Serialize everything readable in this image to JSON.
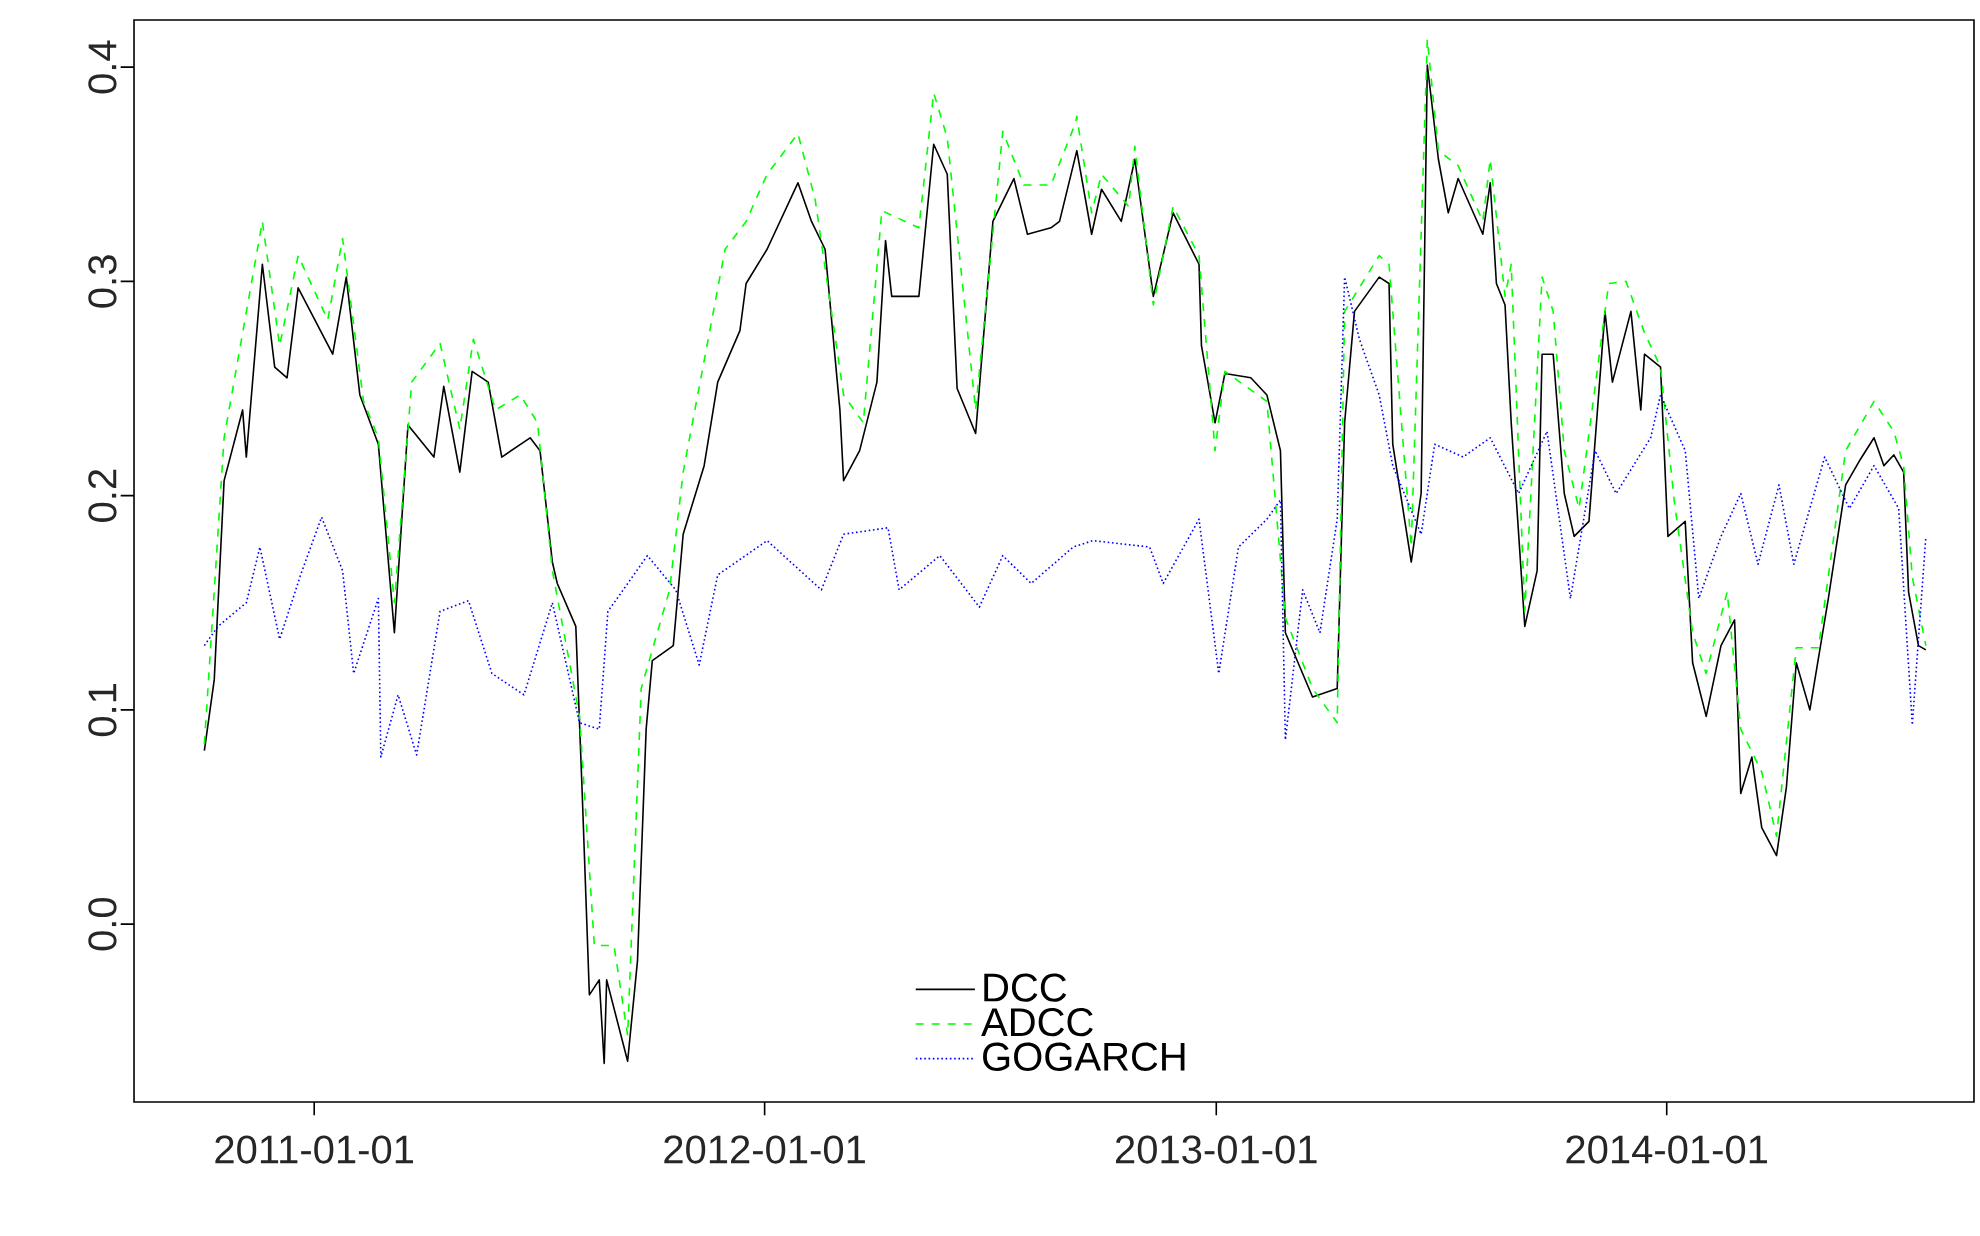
{
  "chart_data": {
    "type": "line",
    "xlim": [
      "2010-08-08",
      "2014-09-07"
    ],
    "ylim": [
      -0.083,
      0.422
    ],
    "xticks": [
      "2011-01-01",
      "2012-01-01",
      "2013-01-01",
      "2014-01-01"
    ],
    "yticks": [
      {
        "value": 0,
        "label": "0.0"
      },
      0.1,
      0.2,
      0.3,
      0.4
    ],
    "legend": "bottom",
    "series": [
      {
        "name": "DCC",
        "color": "#000000",
        "line_style": "solid",
        "x": [
          "2010-10-04",
          "2010-10-12",
          "2010-10-20",
          "2010-11-04",
          "2010-11-07",
          "2010-11-20",
          "2010-11-30",
          "2010-12-10",
          "2010-12-19",
          "2011-01-16",
          "2011-01-27",
          "2011-02-07",
          "2011-02-22",
          "2011-03-07",
          "2011-03-18",
          "2011-04-08",
          "2011-04-16",
          "2011-04-29",
          "2011-05-09",
          "2011-05-22",
          "2011-06-02",
          "2011-06-25",
          "2011-07-03",
          "2011-07-13",
          "2011-07-17",
          "2011-08-01",
          "2011-08-06",
          "2011-08-12",
          "2011-08-20",
          "2011-08-24",
          "2011-08-26",
          "2011-09-12",
          "2011-09-20",
          "2011-09-27",
          "2011-10-02",
          "2011-10-19",
          "2011-10-27",
          "2011-11-13",
          "2011-11-24",
          "2011-12-12",
          "2011-12-17",
          "2012-01-03",
          "2012-01-28",
          "2012-02-08",
          "2012-02-19",
          "2012-03-02",
          "2012-03-05",
          "2012-03-18",
          "2012-04-01",
          "2012-04-08",
          "2012-04-13",
          "2012-05-05",
          "2012-05-17",
          "2012-05-28",
          "2012-06-05",
          "2012-06-20",
          "2012-07-04",
          "2012-07-21",
          "2012-08-01",
          "2012-08-20",
          "2012-08-27",
          "2012-09-10",
          "2012-09-22",
          "2012-09-30",
          "2012-10-16",
          "2012-10-27",
          "2012-11-11",
          "2012-11-27",
          "2012-12-18",
          "2012-12-20",
          "2012-12-31",
          "2013-01-08",
          "2013-01-29",
          "2013-02-11",
          "2013-02-22",
          "2013-02-26",
          "2013-03-20",
          "2013-04-09",
          "2013-04-15",
          "2013-04-23",
          "2013-05-13",
          "2013-05-21",
          "2013-05-24",
          "2013-06-08",
          "2013-06-16",
          "2013-06-21",
          "2013-06-30",
          "2013-07-08",
          "2013-07-16",
          "2013-08-05",
          "2013-08-11",
          "2013-08-16",
          "2013-08-23",
          "2013-08-28",
          "2013-09-08",
          "2013-09-18",
          "2013-09-22",
          "2013-10-01",
          "2013-10-10",
          "2013-10-18",
          "2013-10-30",
          "2013-11-12",
          "2013-11-18",
          "2013-12-03",
          "2013-12-11",
          "2013-12-14",
          "2013-12-27",
          "2014-01-02",
          "2014-01-16",
          "2014-01-22",
          "2014-02-02",
          "2014-02-14",
          "2014-02-25",
          "2014-03-02",
          "2014-03-11",
          "2014-03-19",
          "2014-03-31",
          "2014-04-08",
          "2014-04-16",
          "2014-04-27",
          "2014-05-12",
          "2014-05-26",
          "2014-06-07",
          "2014-06-18",
          "2014-06-26",
          "2014-07-04",
          "2014-07-12",
          "2014-07-16",
          "2014-07-24",
          "2014-07-30"
        ],
        "values": [
          0.081,
          0.114,
          0.207,
          0.24,
          0.218,
          0.308,
          0.26,
          0.255,
          0.297,
          0.266,
          0.302,
          0.247,
          0.224,
          0.136,
          0.233,
          0.218,
          0.251,
          0.211,
          0.258,
          0.253,
          0.218,
          0.227,
          0.221,
          0.169,
          0.159,
          0.139,
          0.064,
          -0.033,
          -0.026,
          -0.065,
          -0.026,
          -0.064,
          -0.017,
          0.091,
          0.123,
          0.13,
          0.182,
          0.214,
          0.253,
          0.277,
          0.299,
          0.315,
          0.346,
          0.328,
          0.315,
          0.24,
          0.207,
          0.221,
          0.253,
          0.319,
          0.293,
          0.293,
          0.364,
          0.35,
          0.25,
          0.229,
          0.328,
          0.348,
          0.322,
          0.325,
          0.328,
          0.361,
          0.322,
          0.343,
          0.328,
          0.357,
          0.293,
          0.332,
          0.308,
          0.27,
          0.234,
          0.257,
          0.255,
          0.247,
          0.221,
          0.136,
          0.106,
          0.11,
          0.234,
          0.286,
          0.302,
          0.299,
          0.224,
          0.169,
          0.201,
          0.401,
          0.357,
          0.332,
          0.348,
          0.322,
          0.346,
          0.299,
          0.289,
          0.234,
          0.139,
          0.165,
          0.266,
          0.266,
          0.201,
          0.181,
          0.188,
          0.286,
          0.253,
          0.286,
          0.24,
          0.266,
          0.26,
          0.181,
          0.188,
          0.122,
          0.097,
          0.13,
          0.142,
          0.061,
          0.078,
          0.045,
          0.032,
          0.064,
          0.122,
          0.1,
          0.152,
          0.205,
          0.217,
          0.227,
          0.214,
          0.219,
          0.211,
          0.155,
          0.13,
          0.128
        ]
      },
      {
        "name": "ADCC",
        "color": "#00ff00",
        "line_style": "dashed",
        "x": [
          "2010-10-04",
          "2010-10-20",
          "2010-11-20",
          "2010-12-04",
          "2010-12-19",
          "2011-01-12",
          "2011-01-24",
          "2011-02-10",
          "2011-02-22",
          "2011-03-07",
          "2011-03-21",
          "2011-04-13",
          "2011-04-29",
          "2011-05-10",
          "2011-05-28",
          "2011-06-17",
          "2011-07-01",
          "2011-07-13",
          "2011-08-04",
          "2011-08-16",
          "2011-09-01",
          "2011-09-12",
          "2011-09-23",
          "2011-10-16",
          "2011-10-27",
          "2011-11-30",
          "2011-12-17",
          "2012-01-03",
          "2012-01-28",
          "2012-02-11",
          "2012-03-05",
          "2012-03-21",
          "2012-04-05",
          "2012-05-05",
          "2012-05-17",
          "2012-05-28",
          "2012-06-20",
          "2012-07-12",
          "2012-07-29",
          "2012-08-20",
          "2012-09-09",
          "2012-09-10",
          "2012-09-22",
          "2012-09-30",
          "2012-10-22",
          "2012-10-27",
          "2012-11-11",
          "2012-11-27",
          "2012-12-18",
          "2012-12-31",
          "2013-01-08",
          "2013-02-11",
          "2013-02-26",
          "2013-03-20",
          "2013-04-09",
          "2013-04-15",
          "2013-05-13",
          "2013-05-21",
          "2013-06-08",
          "2013-06-21",
          "2013-06-30",
          "2013-07-16",
          "2013-08-05",
          "2013-08-11",
          "2013-08-23",
          "2013-08-28",
          "2013-09-08",
          "2013-09-22",
          "2013-10-01",
          "2013-10-10",
          "2013-10-22",
          "2013-11-15",
          "2013-11-29",
          "2013-12-14",
          "2013-12-27",
          "2014-01-07",
          "2014-01-22",
          "2014-02-02",
          "2014-02-19",
          "2014-03-02",
          "2014-03-19",
          "2014-03-31",
          "2014-04-16",
          "2014-05-04",
          "2014-05-26",
          "2014-06-18",
          "2014-07-04",
          "2014-07-12",
          "2014-07-19",
          "2014-07-30"
        ],
        "values": [
          0.084,
          0.227,
          0.328,
          0.27,
          0.312,
          0.282,
          0.32,
          0.244,
          0.227,
          0.15,
          0.253,
          0.271,
          0.231,
          0.273,
          0.24,
          0.247,
          0.234,
          0.165,
          0.097,
          -0.01,
          -0.01,
          -0.052,
          0.11,
          0.156,
          0.211,
          0.315,
          0.328,
          0.35,
          0.369,
          0.338,
          0.247,
          0.234,
          0.333,
          0.325,
          0.388,
          0.367,
          0.24,
          0.37,
          0.345,
          0.345,
          0.374,
          0.377,
          0.332,
          0.35,
          0.335,
          0.363,
          0.289,
          0.335,
          0.312,
          0.221,
          0.258,
          0.244,
          0.143,
          0.11,
          0.094,
          0.286,
          0.312,
          0.308,
          0.176,
          0.413,
          0.361,
          0.354,
          0.328,
          0.357,
          0.293,
          0.308,
          0.146,
          0.302,
          0.286,
          0.221,
          0.194,
          0.299,
          0.3,
          0.276,
          0.26,
          0.198,
          0.136,
          0.117,
          0.155,
          0.091,
          0.071,
          0.041,
          0.129,
          0.129,
          0.221,
          0.244,
          0.23,
          0.214,
          0.162,
          0.13
        ]
      },
      {
        "name": "GOGARCH",
        "color": "#0000ff",
        "line_style": "dotted",
        "x": [
          "2010-10-04",
          "2010-10-15",
          "2010-11-07",
          "2010-11-18",
          "2010-12-04",
          "2010-12-21",
          "2011-01-07",
          "2011-01-24",
          "2011-02-02",
          "2011-02-22",
          "2011-02-24",
          "2011-03-10",
          "2011-03-25",
          "2011-04-13",
          "2011-05-06",
          "2011-05-25",
          "2011-06-20",
          "2011-07-13",
          "2011-08-04",
          "2011-08-20",
          "2011-08-27",
          "2011-09-01",
          "2011-09-28",
          "2011-10-21",
          "2011-11-09",
          "2011-11-24",
          "2012-01-03",
          "2012-02-16",
          "2012-03-05",
          "2012-04-10",
          "2012-04-19",
          "2012-05-22",
          "2012-06-23",
          "2012-07-12",
          "2012-08-04",
          "2012-09-07",
          "2012-09-23",
          "2012-11-08",
          "2012-11-19",
          "2012-12-18",
          "2013-01-03",
          "2013-01-19",
          "2013-02-11",
          "2013-02-22",
          "2013-02-26",
          "2013-03-12",
          "2013-03-26",
          "2013-04-09",
          "2013-04-15",
          "2013-04-27",
          "2013-05-13",
          "2013-05-24",
          "2013-06-16",
          "2013-06-27",
          "2013-07-20",
          "2013-08-11",
          "2013-09-03",
          "2013-09-26",
          "2013-10-15",
          "2013-11-04",
          "2013-11-21",
          "2013-12-19",
          "2013-12-27",
          "2014-01-16",
          "2014-01-27",
          "2014-02-14",
          "2014-03-02",
          "2014-03-16",
          "2014-04-02",
          "2014-04-14",
          "2014-05-09",
          "2014-05-29",
          "2014-06-18",
          "2014-07-08",
          "2014-07-19",
          "2014-07-30"
        ],
        "values": [
          0.13,
          0.139,
          0.15,
          0.176,
          0.133,
          0.163,
          0.19,
          0.165,
          0.117,
          0.152,
          0.078,
          0.107,
          0.079,
          0.146,
          0.151,
          0.117,
          0.107,
          0.15,
          0.094,
          0.091,
          0.146,
          0.15,
          0.172,
          0.156,
          0.121,
          0.163,
          0.179,
          0.156,
          0.182,
          0.185,
          0.156,
          0.172,
          0.148,
          0.172,
          0.159,
          0.176,
          0.179,
          0.176,
          0.159,
          0.189,
          0.117,
          0.176,
          0.189,
          0.198,
          0.086,
          0.156,
          0.136,
          0.189,
          0.302,
          0.273,
          0.247,
          0.214,
          0.182,
          0.224,
          0.218,
          0.227,
          0.201,
          0.23,
          0.152,
          0.221,
          0.201,
          0.227,
          0.247,
          0.221,
          0.152,
          0.181,
          0.201,
          0.168,
          0.205,
          0.168,
          0.218,
          0.194,
          0.214,
          0.194,
          0.093,
          0.181
        ]
      }
    ]
  }
}
